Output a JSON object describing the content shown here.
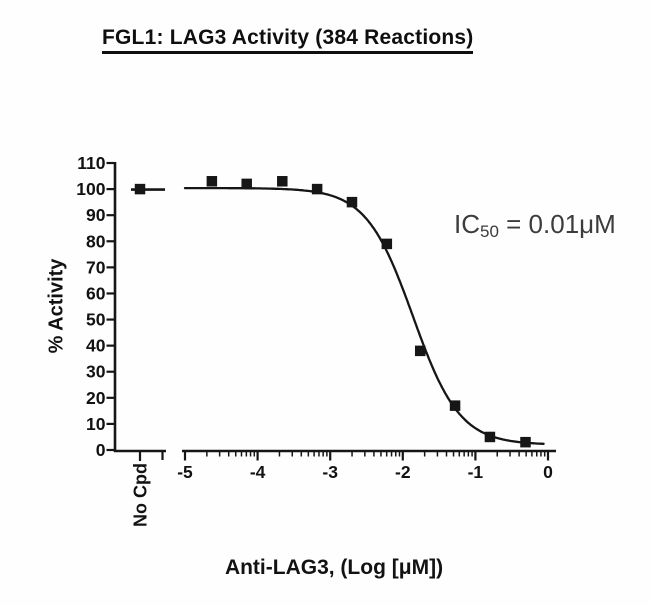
{
  "figure": {
    "title": "FGL1: LAG3 Activity (384 Reactions)"
  },
  "annotation": {
    "prefix": "IC",
    "subscript": "50",
    "middle": " = 0.01",
    "unit": "μM"
  },
  "chart_data": {
    "type": "scatter",
    "title": "FGL1: LAG3 Activity (384 Reactions)",
    "xlabel": "Anti-LAG3, (Log [μM])",
    "ylabel": "% Activity",
    "xlim": [
      -5,
      0
    ],
    "ylim": [
      0,
      110
    ],
    "x_ticks": [
      -5,
      -4,
      -3,
      -2,
      -1,
      0
    ],
    "x_tick_labels": [
      "-5",
      "-4",
      "-3",
      "-2",
      "-1",
      "0"
    ],
    "y_ticks": [
      0,
      10,
      20,
      30,
      40,
      50,
      60,
      70,
      80,
      90,
      100,
      110
    ],
    "x_minor_ticks": "log-decade",
    "x_axis_break_after_control": true,
    "grid": false,
    "legend": false,
    "control": {
      "label": "No Cpd",
      "value": 100
    },
    "points": [
      {
        "x": -4.63,
        "y": 103
      },
      {
        "x": -4.15,
        "y": 102
      },
      {
        "x": -3.66,
        "y": 103
      },
      {
        "x": -3.18,
        "y": 100
      },
      {
        "x": -2.7,
        "y": 95
      },
      {
        "x": -2.22,
        "y": 79
      },
      {
        "x": -1.76,
        "y": 38
      },
      {
        "x": -1.28,
        "y": 17
      },
      {
        "x": -0.8,
        "y": 5
      },
      {
        "x": -0.31,
        "y": 3
      }
    ],
    "fit_curve": {
      "model": "4PL",
      "top": 100.4,
      "bottom": 2.0,
      "log_ic50": -1.86,
      "hill": 1.35
    },
    "ic50_text": "IC50 = 0.01μM",
    "marker": {
      "shape": "square",
      "size": 10.5,
      "color": "#161616"
    },
    "line_color": "#161616"
  }
}
